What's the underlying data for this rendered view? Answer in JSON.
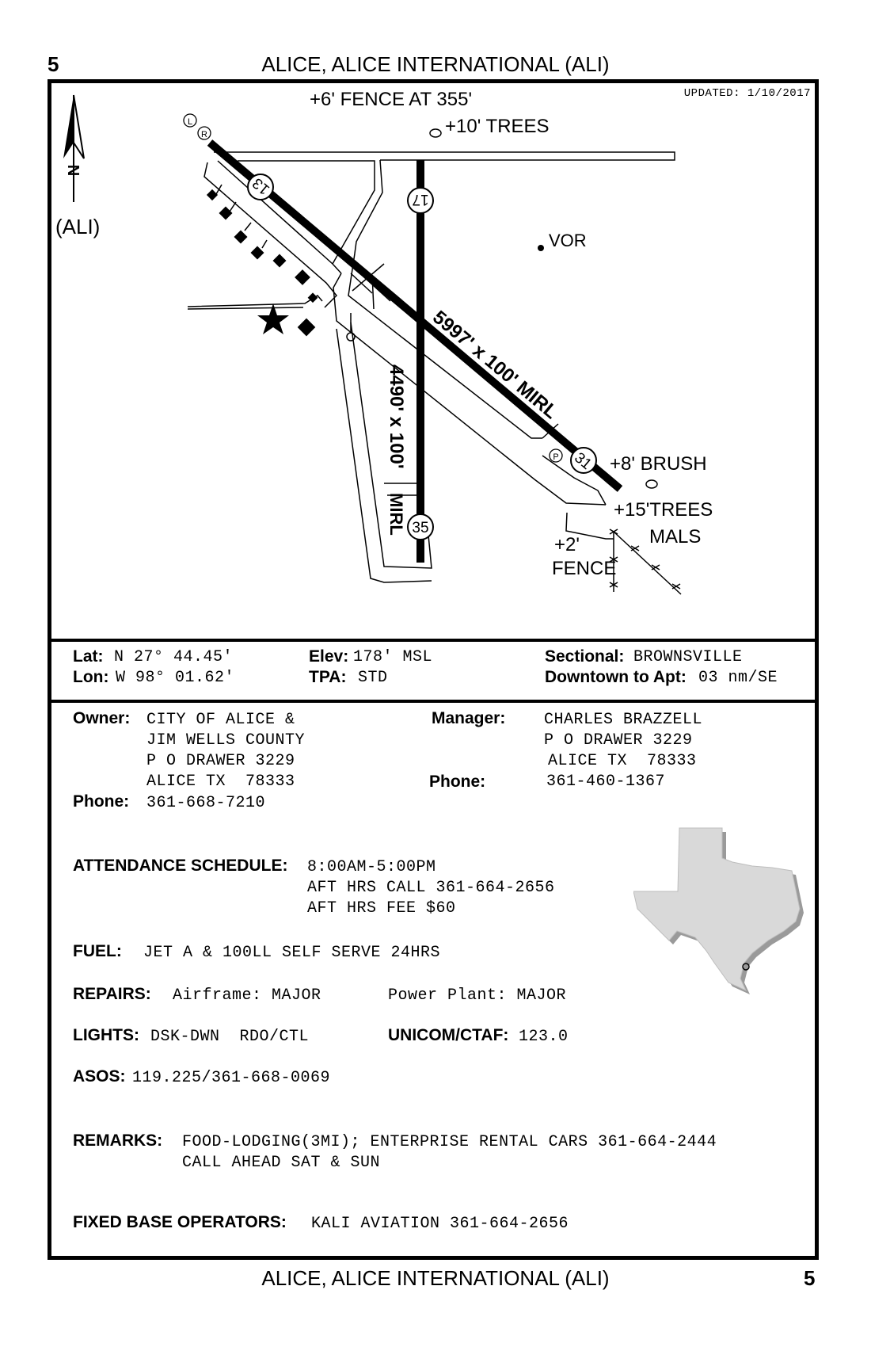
{
  "header": {
    "page_number": "5",
    "title": "ALICE, ALICE INTERNATIONAL (ALI)"
  },
  "footer": {
    "page_number": "5",
    "title": "ALICE, ALICE INTERNATIONAL (ALI)"
  },
  "diagram": {
    "updated": "UPDATED: 1/10/2017",
    "identifier": "(ALI)",
    "north_label": "N",
    "notes": {
      "fence_north": "+6' FENCE AT 355'",
      "trees_north": "+10' TREES",
      "vor": "VOR",
      "brush": "+8' BRUSH",
      "trees_south": "+15'TREES",
      "mals": "MALS",
      "fence_south_1": "+2'",
      "fence_south_2": "FENCE"
    },
    "runways": {
      "main_label": "5997' x 100' MIRL",
      "cross_label_1": "4490' x 100'",
      "cross_label_2": "MIRL",
      "end_13": "13",
      "end_31": "31",
      "end_17": "17",
      "end_35": "35"
    },
    "markers": {
      "L": "L",
      "R": "R",
      "P": "P"
    }
  },
  "location": {
    "lat_label": "Lat:",
    "lat_value": "N 27° 44.45'",
    "lon_label": "Lon:",
    "lon_value": "W 98° 01.62'",
    "elev_label": "Elev:",
    "elev_value": "178' MSL",
    "tpa_label": "TPA:",
    "tpa_value": "STD",
    "sectional_label": "Sectional:",
    "sectional_value": "BROWNSVILLE",
    "downtown_label": "Downtown to Apt:",
    "downtown_value": "03 nm/SE"
  },
  "owner": {
    "label": "Owner:",
    "lines": [
      "CITY OF ALICE &",
      "JIM WELLS COUNTY",
      "P O DRAWER 3229",
      "ALICE TX  78333"
    ],
    "phone_label": "Phone:",
    "phone": "361-668-7210"
  },
  "manager": {
    "label": "Manager:",
    "lines": [
      "CHARLES BRAZZELL",
      "P O DRAWER 3229",
      "ALICE TX  78333"
    ],
    "phone_label": "Phone:",
    "phone": "361-460-1367"
  },
  "attendance": {
    "label": "ATTENDANCE SCHEDULE:",
    "lines": [
      "8:00AM-5:00PM",
      "AFT HRS CALL 361-664-2656",
      "AFT HRS FEE $60"
    ]
  },
  "fuel": {
    "label": "FUEL:",
    "value": "JET A & 100LL SELF SERVE 24HRS"
  },
  "repairs": {
    "label": "REPAIRS:",
    "airframe": "Airframe: MAJOR",
    "powerplant": "Power Plant: MAJOR"
  },
  "lights": {
    "label": "LIGHTS:",
    "value": "DSK-DWN  RDO/CTL"
  },
  "unicom": {
    "label": "UNICOM/CTAF:",
    "value": "123.0"
  },
  "asos": {
    "label": "ASOS:",
    "value": "119.225/361-668-0069"
  },
  "remarks": {
    "label": "REMARKS:",
    "lines": [
      "FOOD-LODGING(3MI); ENTERPRISE RENTAL CARS 361-664-2444",
      "CALL AHEAD SAT & SUN"
    ]
  },
  "fbo": {
    "label": "FIXED BASE OPERATORS:",
    "value": "KALI AVIATION 361-664-2656"
  },
  "map": {
    "state_color": "#d9d9d9",
    "shadow_color": "#9a9a9a"
  }
}
